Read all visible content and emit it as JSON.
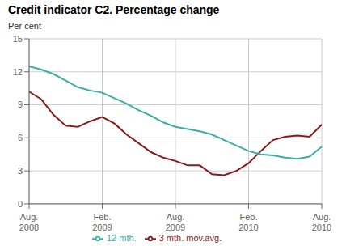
{
  "chart_data": {
    "type": "line",
    "title": "Credit indicator C2. Percentage change",
    "ylabel": "Per cent",
    "categories": [
      "Aug.\n2008",
      null,
      null,
      null,
      null,
      null,
      "Feb.\n2009",
      null,
      null,
      null,
      null,
      null,
      "Aug.\n2009",
      null,
      null,
      null,
      null,
      null,
      "Feb.\n2010",
      null,
      null,
      null,
      null,
      null,
      "Aug.\n2010"
    ],
    "series": [
      {
        "name": "3 mth. mov.avg.",
        "color": "#8b1a1a",
        "values": [
          10.2,
          9.5,
          8.1,
          7.1,
          7.0,
          7.5,
          7.9,
          7.3,
          6.3,
          5.5,
          4.7,
          4.2,
          3.9,
          3.5,
          3.5,
          2.7,
          2.6,
          3.0,
          3.7,
          4.8,
          5.8,
          6.1,
          6.2,
          6.1,
          7.2
        ]
      },
      {
        "name": "12 mth.",
        "color": "#3aafa9",
        "values": [
          12.5,
          12.2,
          11.8,
          11.2,
          10.6,
          10.3,
          10.1,
          9.6,
          9.1,
          8.5,
          8.0,
          7.4,
          7.0,
          6.8,
          6.6,
          6.3,
          5.8,
          5.3,
          4.8,
          4.5,
          4.4,
          4.2,
          4.1,
          4.3,
          5.2
        ]
      }
    ],
    "ylim": [
      0,
      15
    ],
    "yticks": [
      0,
      3,
      6,
      9,
      12,
      15
    ],
    "grid": true,
    "legend": "bottom"
  }
}
